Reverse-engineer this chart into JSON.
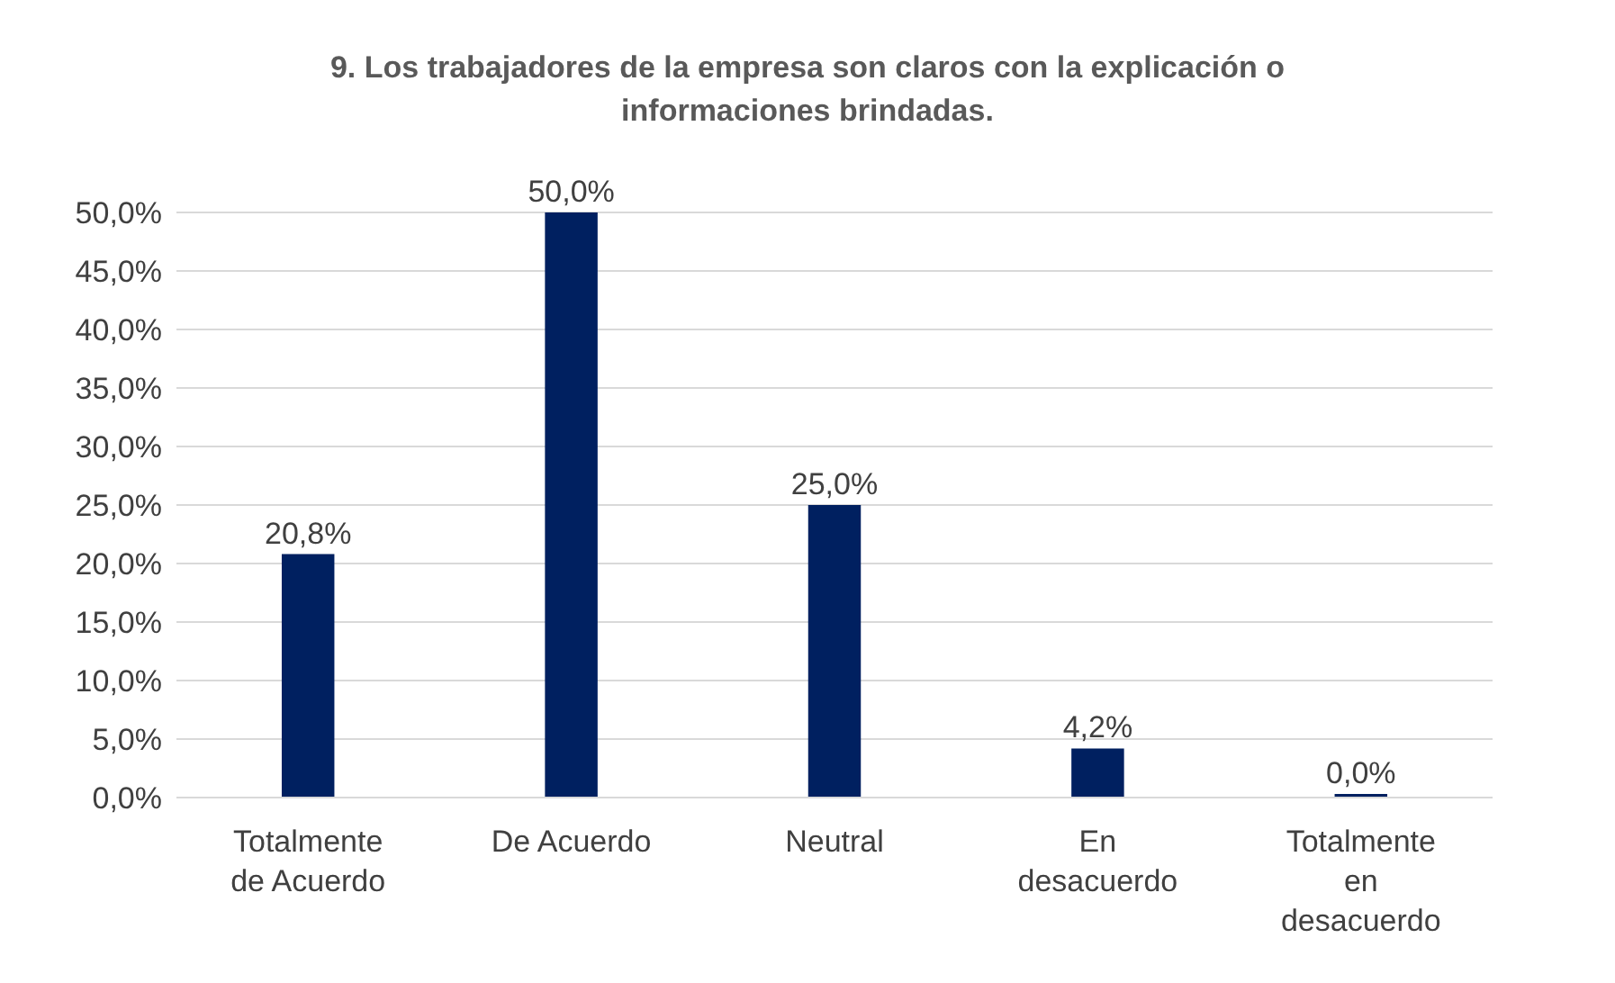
{
  "chart_data": {
    "type": "bar",
    "title": "9. Los trabajadores de la empresa son claros con la explicación o informaciones brindadas.",
    "categories": [
      "Totalmente de Acuerdo",
      "De Acuerdo",
      "Neutral",
      "En desacuerdo",
      "Totalmente en desacuerdo"
    ],
    "values": [
      20.8,
      50,
      25,
      4.2,
      0
    ],
    "value_labels": [
      "20,8%",
      "50,0%",
      "25,0%",
      "4,2%",
      "0,0%"
    ],
    "color": "#002060",
    "ylim": [
      0,
      50
    ],
    "yticks": [
      {
        "value": 0,
        "label": "0,0%"
      },
      {
        "value": 5,
        "label": "5,0%"
      },
      {
        "value": 10,
        "label": "10,0%"
      },
      {
        "value": 15,
        "label": "15,0%"
      },
      {
        "value": 20,
        "label": "20,0%"
      },
      {
        "value": 25,
        "label": "25,0%"
      },
      {
        "value": 30,
        "label": "30,0%"
      },
      {
        "value": 35,
        "label": "35,0%"
      },
      {
        "value": 40,
        "label": "40,0%"
      },
      {
        "value": 45,
        "label": "45,0%"
      },
      {
        "value": 50,
        "label": "50,0%"
      }
    ],
    "grid": "y"
  }
}
